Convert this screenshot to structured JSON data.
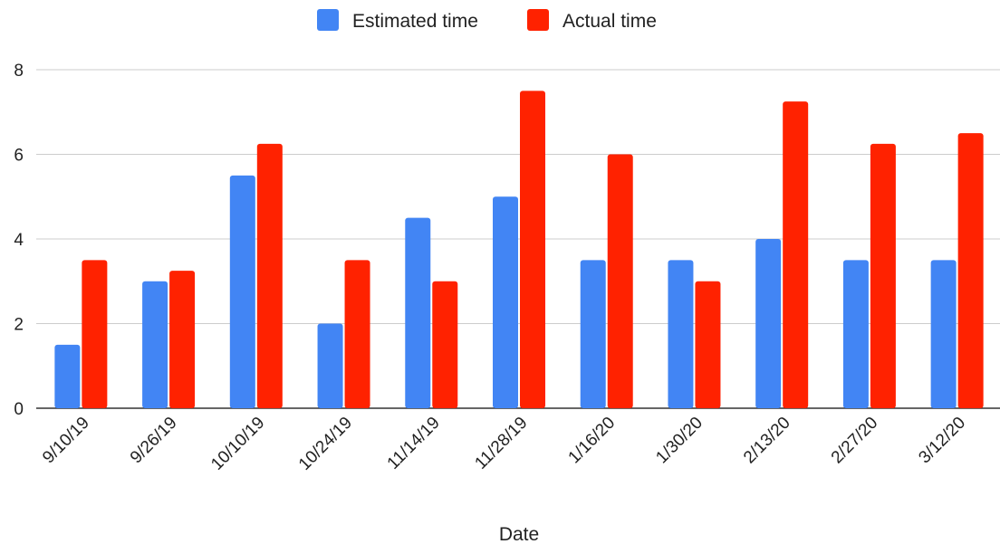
{
  "chart_data": {
    "type": "bar",
    "title": "",
    "xlabel": "Date",
    "ylabel": "",
    "categories": [
      "9/10/19",
      "9/26/19",
      "10/10/19",
      "10/24/19",
      "11/14/19",
      "11/28/19",
      "1/16/20",
      "1/30/20",
      "2/13/20",
      "2/27/20",
      "3/12/20"
    ],
    "series": [
      {
        "name": "Estimated time",
        "color": "#4285f4",
        "values": [
          1.5,
          3,
          5.5,
          2,
          4.5,
          5,
          3.5,
          3.5,
          4,
          3.5,
          3.5
        ]
      },
      {
        "name": "Actual time",
        "color": "#ff2200",
        "values": [
          3.5,
          3.25,
          6.25,
          3.5,
          3,
          7.5,
          6,
          3,
          7.25,
          6.25,
          6.5
        ]
      }
    ],
    "ylim": [
      0,
      8
    ],
    "yticks": [
      0,
      2,
      4,
      6,
      8
    ],
    "grid": true,
    "legend_position": "top-center"
  }
}
